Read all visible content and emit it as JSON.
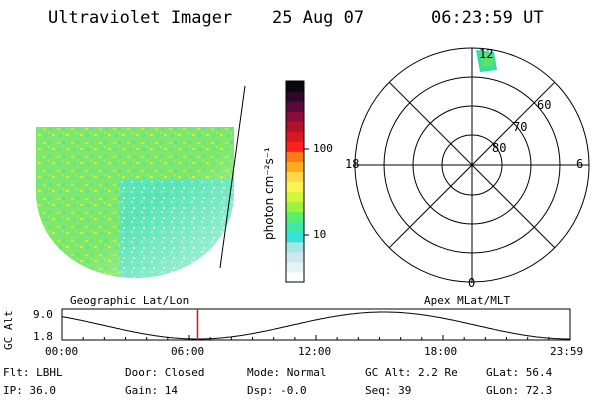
{
  "header": {
    "instrument": "Ultraviolet Imager",
    "date": "25 Aug 07",
    "time": "06:23:59 UT"
  },
  "colorbar": {
    "unit_label": "photon cm⁻²s⁻¹",
    "ticks": [
      "100",
      "10"
    ],
    "colors": [
      "#ffffff",
      "#e6f3f6",
      "#cfe7ee",
      "#a6e6e6",
      "#35e1d8",
      "#3fe9a7",
      "#56f06b",
      "#9ff23c",
      "#d3f53b",
      "#fbf356",
      "#ffd84a",
      "#ffac1c",
      "#ff7a14",
      "#ff2020",
      "#d51822",
      "#b0102d",
      "#8a0c39",
      "#5a0a3a",
      "#2c0829",
      "#0d0512"
    ]
  },
  "polar": {
    "labels": {
      "top": "12",
      "bottom": "0",
      "left": "18",
      "right": "6"
    },
    "lat_labels": [
      "60",
      "70",
      "80"
    ]
  },
  "timeline": {
    "left_title": "Geographic Lat/Lon",
    "right_title": "Apex MLat/MLT",
    "axis_label": "GC Alt",
    "y_ticks": [
      "9.0",
      "1.8"
    ],
    "x_ticks": [
      "00:00",
      "06:00",
      "12:00",
      "18:00",
      "23:59"
    ],
    "current_time_hours": 6.4
  },
  "info": {
    "row1": {
      "flt": "Flt: LBHL",
      "door": "Door: Closed",
      "mode": "Mode: Normal",
      "gcalt": "GC Alt: 2.2 Re",
      "glat": "GLat:  56.4"
    },
    "row2": {
      "ip": "IP: 36.0",
      "gain": "Gain: 14",
      "dsp": "Dsp:   -0.0",
      "seq": "Seq: 39",
      "glon": "GLon:  72.3"
    }
  }
}
